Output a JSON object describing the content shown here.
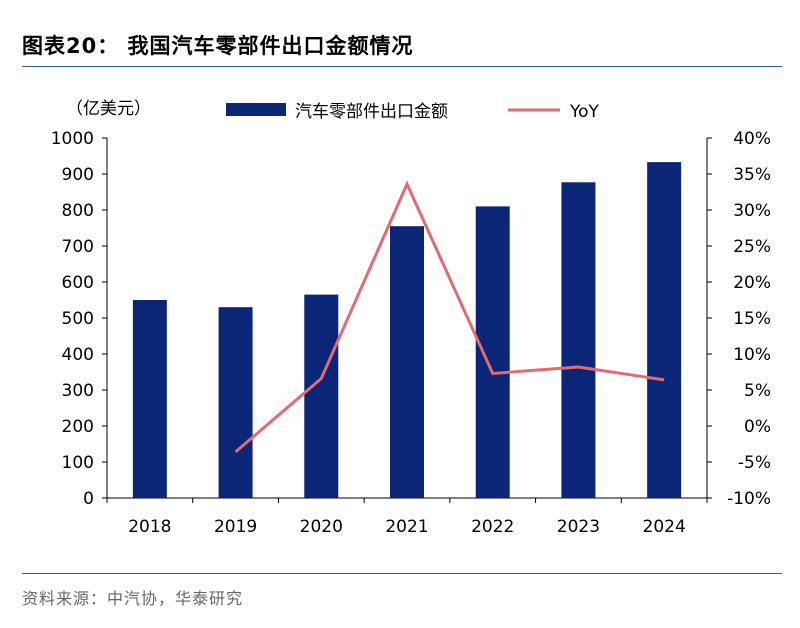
{
  "header": {
    "title": "图表20：  我国汽车零部件出口金额情况",
    "unit": "（亿美元）"
  },
  "footer": {
    "source": "资料来源：中汽协，华泰研究"
  },
  "colors": {
    "bar": "#0b2577",
    "line": "#e06b72",
    "rule": "#2f5d9a"
  },
  "chart_data": {
    "type": "bar",
    "title": "我国汽车零部件出口金额情况",
    "categories": [
      "2018",
      "2019",
      "2020",
      "2021",
      "2022",
      "2023",
      "2024"
    ],
    "series": [
      {
        "name": "汽车零部件出口金额",
        "type": "bar",
        "axis": "left",
        "values": [
          550,
          530,
          565,
          755,
          810,
          877,
          933
        ]
      },
      {
        "name": "YoY",
        "type": "line",
        "axis": "right",
        "values": [
          null,
          -3.6,
          6.6,
          33.6,
          7.3,
          8.2,
          6.4
        ]
      }
    ],
    "ylim_left": [
      0,
      1000
    ],
    "ylim_right": [
      -10,
      40
    ],
    "left_ticks": [
      "0",
      "100",
      "200",
      "300",
      "400",
      "500",
      "600",
      "700",
      "800",
      "900",
      "1000"
    ],
    "right_ticks": [
      "-10%",
      "-5%",
      "0%",
      "5%",
      "10%",
      "15%",
      "20%",
      "25%",
      "30%",
      "35%",
      "40%"
    ],
    "legend": {
      "position": "top",
      "entries": [
        "汽车零部件出口金额",
        "YoY"
      ]
    }
  }
}
